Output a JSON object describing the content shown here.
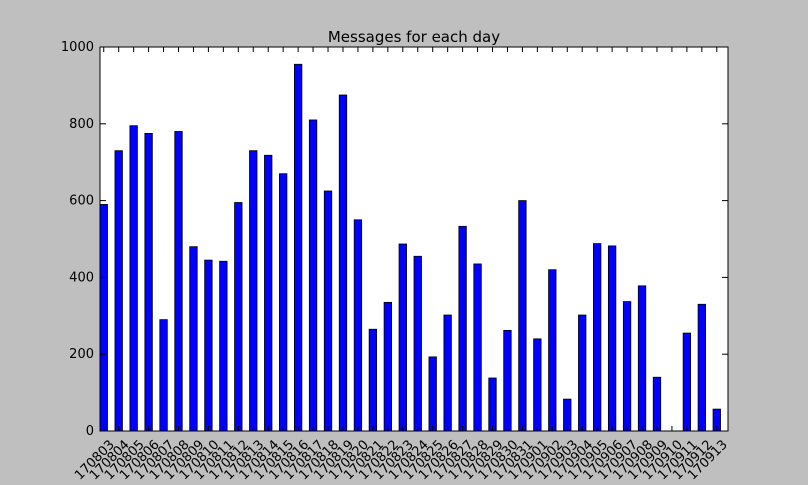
{
  "chart_data": {
    "type": "bar",
    "title": "Messages for each day",
    "xlabel": "",
    "ylabel": "",
    "ylim": [
      0,
      1000
    ],
    "yticks": [
      0,
      200,
      400,
      600,
      800,
      1000
    ],
    "grid": false,
    "legend": "none",
    "categories": [
      "170803",
      "170804",
      "170805",
      "170806",
      "170807",
      "170808",
      "170809",
      "170810",
      "170811",
      "170812",
      "170813",
      "170814",
      "170815",
      "170816",
      "170817",
      "170818",
      "170819",
      "170820",
      "170821",
      "170822",
      "170823",
      "170824",
      "170825",
      "170826",
      "170827",
      "170828",
      "170829",
      "170830",
      "170831",
      "170901",
      "170902",
      "170903",
      "170904",
      "170905",
      "170906",
      "170907",
      "170908",
      "170909",
      "170910",
      "170911",
      "170912",
      "170913"
    ],
    "values": [
      590,
      730,
      795,
      775,
      290,
      780,
      480,
      445,
      442,
      595,
      730,
      718,
      670,
      955,
      810,
      625,
      875,
      550,
      265,
      335,
      487,
      455,
      193,
      302,
      533,
      435,
      138,
      262,
      600,
      240,
      420,
      83,
      302,
      488,
      482,
      337,
      378,
      140,
      0,
      255,
      330,
      57
    ],
    "colors": {
      "bar_fill": "#0000ff",
      "bar_stroke": "#000000",
      "plot_bg": "#ffffff",
      "figure_bg": "#bfbfbf"
    }
  }
}
